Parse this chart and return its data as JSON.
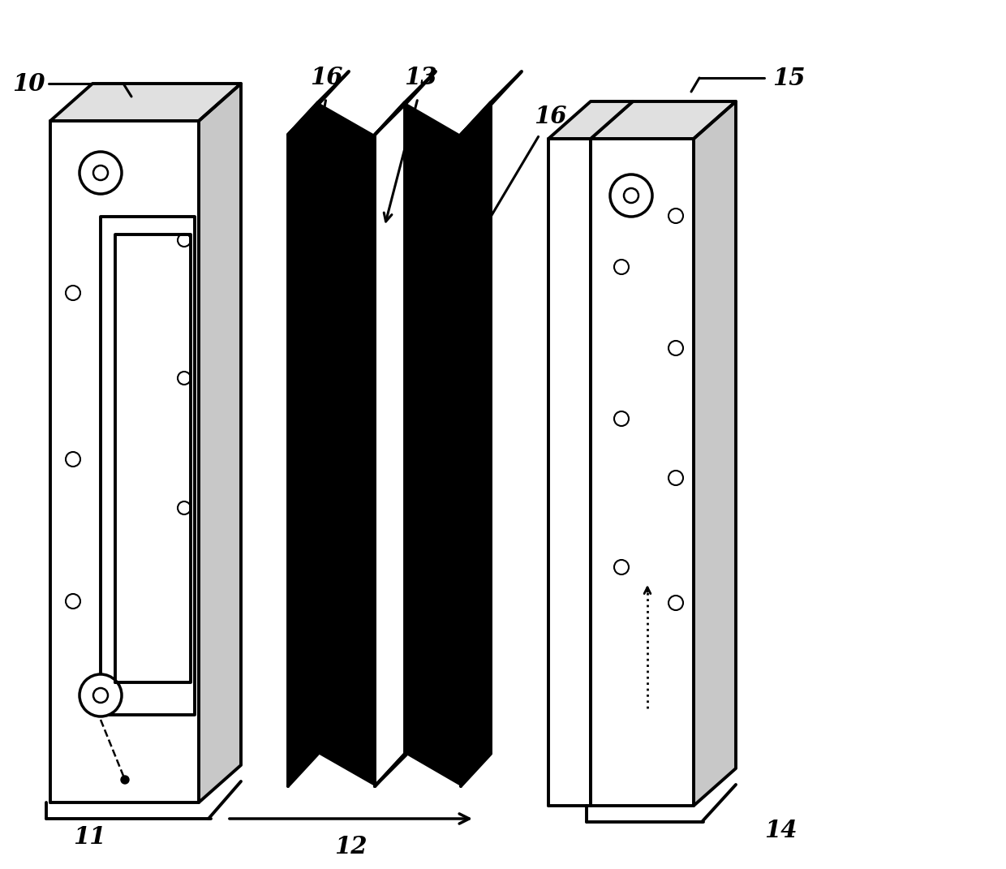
{
  "bg_color": "#ffffff",
  "lc": "#000000",
  "lw": 2.8,
  "font_size": 21,
  "fig_w": 12.4,
  "fig_h": 10.71
}
